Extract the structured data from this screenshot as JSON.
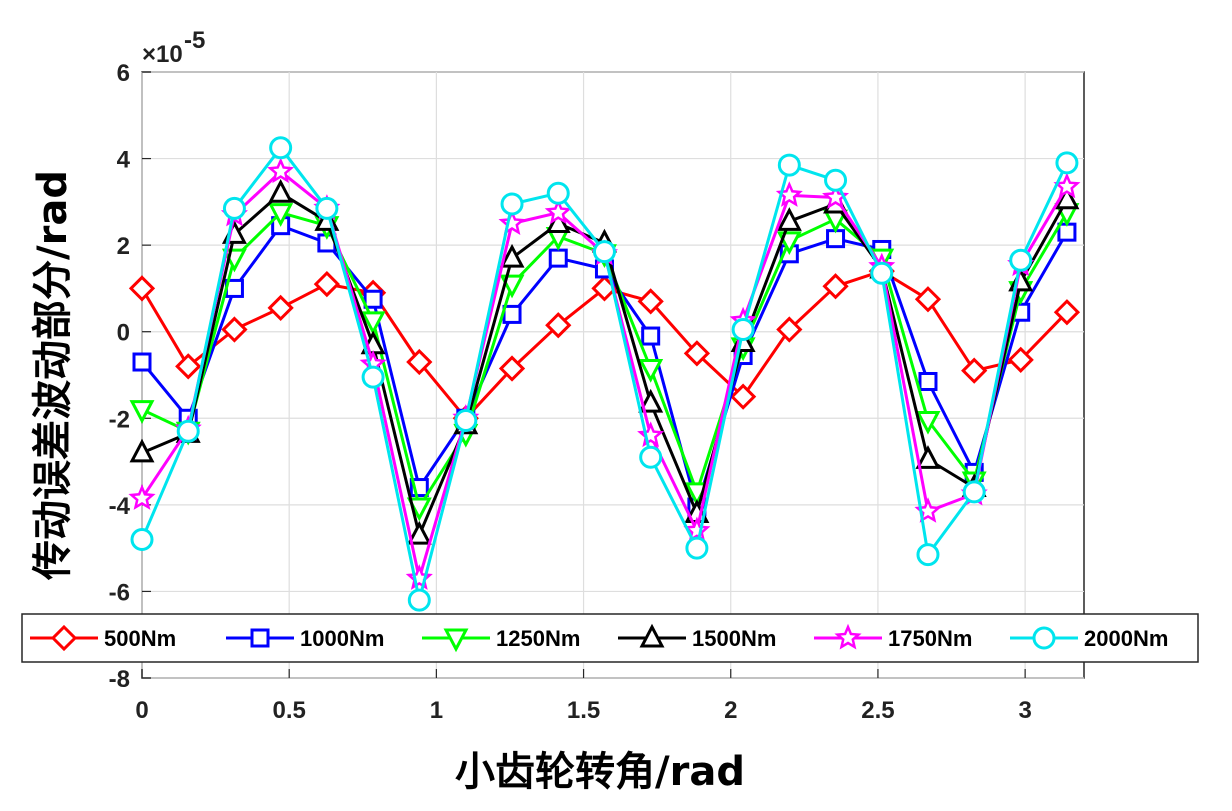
{
  "chart_data": {
    "type": "line",
    "xlabel": "小齿轮转角/rad",
    "ylabel": "传动误差波动部分/rad",
    "exponent_base": "×10",
    "exponent_power": "-5",
    "xlim": [
      0,
      3.2
    ],
    "ylim": [
      -8,
      6
    ],
    "grid": true,
    "legend_position": "bottom",
    "x_ticks": [
      "0",
      "0.5",
      "1",
      "1.5",
      "2",
      "2.5",
      "3"
    ],
    "x_tick_values": [
      0,
      0.5,
      1,
      1.5,
      2,
      2.5,
      3
    ],
    "y_ticks": [
      "-8",
      "-6",
      "-4",
      "-2",
      "0",
      "2",
      "4",
      "6"
    ],
    "y_tick_values": [
      -8,
      -6,
      -4,
      -2,
      0,
      2,
      4,
      6
    ],
    "x": [
      0,
      0.157,
      0.314,
      0.471,
      0.628,
      0.785,
      0.942,
      1.1,
      1.257,
      1.414,
      1.571,
      1.728,
      1.885,
      2.042,
      2.199,
      2.356,
      2.513,
      2.67,
      2.827,
      2.985,
      3.142
    ],
    "series": [
      {
        "name": "500Nm",
        "color": "#ff0000",
        "marker": "diamond",
        "values": [
          1.0,
          -0.8,
          0.05,
          0.55,
          1.1,
          0.9,
          -0.7,
          -2.0,
          -0.85,
          0.15,
          1.0,
          0.7,
          -0.5,
          -1.5,
          0.05,
          1.05,
          1.4,
          0.75,
          -0.9,
          -0.65,
          0.45
        ]
      },
      {
        "name": "1000Nm",
        "color": "#0000ff",
        "marker": "square",
        "values": [
          -0.7,
          -2.0,
          1.0,
          2.45,
          2.05,
          0.75,
          -3.6,
          -2.0,
          0.4,
          1.7,
          1.45,
          -0.1,
          -4.05,
          -0.55,
          1.8,
          2.15,
          1.9,
          -1.15,
          -3.25,
          0.45,
          2.3
        ]
      },
      {
        "name": "1250Nm",
        "color": "#00ff00",
        "marker": "triangle-down",
        "values": [
          -1.8,
          -2.3,
          1.7,
          2.75,
          2.45,
          0.25,
          -4.05,
          -2.35,
          1.1,
          2.2,
          1.8,
          -0.85,
          -3.7,
          -0.35,
          2.1,
          2.6,
          1.7,
          -2.05,
          -3.45,
          0.95,
          2.75
        ]
      },
      {
        "name": "1500Nm",
        "color": "#000000",
        "marker": "triangle-up",
        "values": [
          -2.8,
          -2.35,
          2.25,
          3.2,
          2.55,
          -0.3,
          -4.7,
          -2.15,
          1.7,
          2.5,
          2.05,
          -1.65,
          -4.2,
          -0.25,
          2.55,
          2.95,
          1.45,
          -2.95,
          -3.6,
          1.15,
          3.05
        ]
      },
      {
        "name": "1750Nm",
        "color": "#ff00ff",
        "marker": "star",
        "values": [
          -3.85,
          -2.25,
          2.7,
          3.7,
          2.85,
          -0.75,
          -5.7,
          -2.0,
          2.5,
          2.75,
          1.8,
          -2.4,
          -4.6,
          0.25,
          3.15,
          3.1,
          1.5,
          -4.15,
          -3.75,
          1.55,
          3.35
        ]
      },
      {
        "name": "2000Nm",
        "color": "#00e5ee",
        "marker": "circle",
        "values": [
          -4.8,
          -2.3,
          2.85,
          4.25,
          2.85,
          -1.05,
          -6.2,
          -2.05,
          2.95,
          3.2,
          1.85,
          -2.9,
          -5.0,
          0.05,
          3.85,
          3.5,
          1.35,
          -5.15,
          -3.7,
          1.65,
          3.9
        ]
      }
    ]
  }
}
